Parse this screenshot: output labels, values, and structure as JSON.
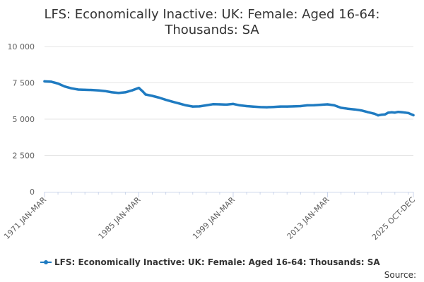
{
  "chart_data": {
    "type": "line",
    "title_lines": [
      "LFS: Economically Inactive: UK: Female: Aged 16-64:",
      "Thousands: SA"
    ],
    "xlabel": "",
    "ylabel": "",
    "x_start": "1971 JAN-MAR",
    "x_end": "2025 OCT-DEC",
    "x_ticks": [
      "1971 JAN-MAR",
      "1985 JAN-MAR",
      "1999 JAN-MAR",
      "2013 JAN-MAR",
      "2025 OCT-DEC"
    ],
    "x_tick_years": [
      1971,
      1985,
      1999,
      2013,
      2025.75
    ],
    "ylim": [
      0,
      10000
    ],
    "y_ticks": [
      0,
      2500,
      5000,
      7500,
      10000
    ],
    "y_tick_labels": [
      "0",
      "2 500",
      "5 000",
      "7 500",
      "10 000"
    ],
    "grid": "horizontal",
    "legend_position": "bottom",
    "series": [
      {
        "name": "LFS: Economically Inactive: UK: Female: Aged 16-64: Thousands: SA",
        "color": "#1f7bc1",
        "points": [
          [
            1971.0,
            7600
          ],
          [
            1972.0,
            7580
          ],
          [
            1973.0,
            7450
          ],
          [
            1974.0,
            7250
          ],
          [
            1975.0,
            7120
          ],
          [
            1976.0,
            7040
          ],
          [
            1977.0,
            7020
          ],
          [
            1978.0,
            7010
          ],
          [
            1979.0,
            6980
          ],
          [
            1980.0,
            6930
          ],
          [
            1981.0,
            6850
          ],
          [
            1982.0,
            6800
          ],
          [
            1983.0,
            6850
          ],
          [
            1984.0,
            6980
          ],
          [
            1985.0,
            7150
          ],
          [
            1985.6,
            6900
          ],
          [
            1986.0,
            6700
          ],
          [
            1987.0,
            6600
          ],
          [
            1988.0,
            6480
          ],
          [
            1989.0,
            6330
          ],
          [
            1990.0,
            6200
          ],
          [
            1991.0,
            6080
          ],
          [
            1992.0,
            5950
          ],
          [
            1993.0,
            5870
          ],
          [
            1994.0,
            5880
          ],
          [
            1995.0,
            5950
          ],
          [
            1996.0,
            6030
          ],
          [
            1997.0,
            6020
          ],
          [
            1998.0,
            6000
          ],
          [
            1999.0,
            6050
          ],
          [
            2000.0,
            5950
          ],
          [
            2001.0,
            5900
          ],
          [
            2002.0,
            5860
          ],
          [
            2003.0,
            5830
          ],
          [
            2004.0,
            5820
          ],
          [
            2005.0,
            5840
          ],
          [
            2006.0,
            5870
          ],
          [
            2007.0,
            5870
          ],
          [
            2008.0,
            5880
          ],
          [
            2009.0,
            5900
          ],
          [
            2010.0,
            5950
          ],
          [
            2011.0,
            5960
          ],
          [
            2012.0,
            5990
          ],
          [
            2013.0,
            6020
          ],
          [
            2014.0,
            5950
          ],
          [
            2015.0,
            5780
          ],
          [
            2016.0,
            5720
          ],
          [
            2017.0,
            5670
          ],
          [
            2018.0,
            5600
          ],
          [
            2019.0,
            5480
          ],
          [
            2020.0,
            5370
          ],
          [
            2020.5,
            5260
          ],
          [
            2021.0,
            5300
          ],
          [
            2021.5,
            5320
          ],
          [
            2022.0,
            5440
          ],
          [
            2022.5,
            5470
          ],
          [
            2023.0,
            5450
          ],
          [
            2023.5,
            5500
          ],
          [
            2024.0,
            5480
          ],
          [
            2024.5,
            5450
          ],
          [
            2025.0,
            5420
          ],
          [
            2025.75,
            5270
          ]
        ]
      }
    ],
    "source_label": "Source:"
  }
}
